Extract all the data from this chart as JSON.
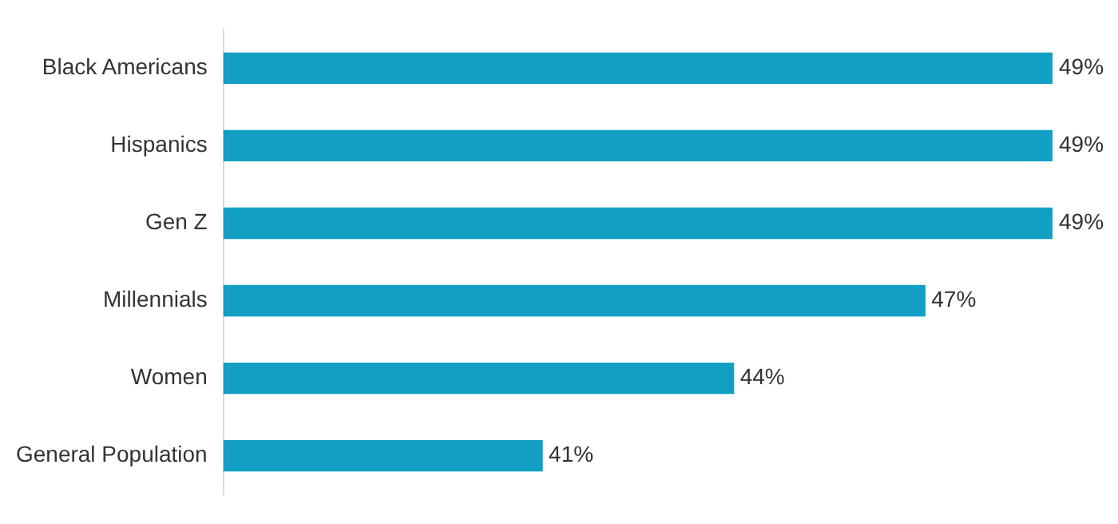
{
  "chart_data": {
    "type": "bar",
    "orientation": "horizontal",
    "categories": [
      "Black Americans",
      "Hispanics",
      "Gen Z",
      "Millennials",
      "Women",
      "General Population"
    ],
    "values": [
      49,
      49,
      49,
      47,
      44,
      41
    ],
    "value_labels": [
      "49%",
      "49%",
      "49%",
      "47%",
      "44%",
      "41%"
    ],
    "color": "#139fc4",
    "xlim": [
      36,
      49
    ]
  }
}
